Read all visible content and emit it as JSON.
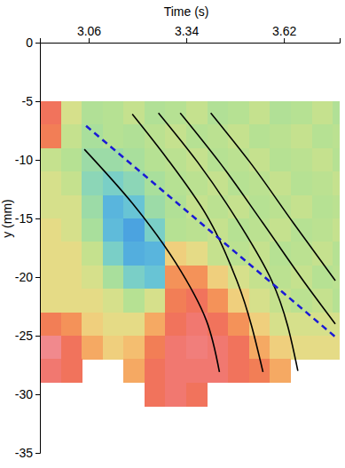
{
  "chart_data": {
    "type": "heatmap",
    "x_label": "Time (s)",
    "y_label": "y (mm)",
    "xlim": [
      2.92,
      3.78
    ],
    "xticks": [
      3.06,
      3.34,
      3.62
    ],
    "ylim": [
      -35,
      0
    ],
    "yticks": [
      0,
      -5,
      -10,
      -15,
      -20,
      -25,
      -30,
      -35
    ],
    "zlim": [
      0,
      1
    ],
    "cell_x": [
      2.92,
      2.98,
      3.04,
      3.1,
      3.16,
      3.22,
      3.28,
      3.34,
      3.4,
      3.46,
      3.52,
      3.58,
      3.64,
      3.7,
      3.76,
      3.78
    ],
    "cell_y": [
      -5,
      -7,
      -9,
      -11,
      -13,
      -15,
      -17,
      -19,
      -21,
      -23,
      -25,
      -27,
      -29,
      -31
    ],
    "cells": [
      [
        0.85,
        0.5,
        0.38,
        0.4,
        0.45,
        0.38,
        0.4,
        0.45,
        0.38,
        0.4,
        0.45,
        0.38,
        0.4,
        0.45,
        0.38
      ],
      [
        0.8,
        0.45,
        0.35,
        0.4,
        0.38,
        0.42,
        0.45,
        0.4,
        0.42,
        0.45,
        0.4,
        0.42,
        0.45,
        0.4,
        0.42
      ],
      [
        0.45,
        0.4,
        0.3,
        0.3,
        0.35,
        0.4,
        0.42,
        0.45,
        0.4,
        0.42,
        0.45,
        0.4,
        0.42,
        0.45,
        0.4
      ],
      [
        0.5,
        0.45,
        0.25,
        0.2,
        0.25,
        0.35,
        0.4,
        0.42,
        0.45,
        0.4,
        0.42,
        0.45,
        0.4,
        0.42,
        0.45
      ],
      [
        0.5,
        0.5,
        0.3,
        0.1,
        0.15,
        0.3,
        0.38,
        0.45,
        0.42,
        0.45,
        0.4,
        0.42,
        0.45,
        0.4,
        0.42
      ],
      [
        0.55,
        0.5,
        0.35,
        0.12,
        0.05,
        0.2,
        0.4,
        0.42,
        0.45,
        0.4,
        0.42,
        0.45,
        0.4,
        0.42,
        0.45
      ],
      [
        0.55,
        0.55,
        0.45,
        0.2,
        0.08,
        0.1,
        0.6,
        0.55,
        0.45,
        0.42,
        0.45,
        0.4,
        0.42,
        0.45,
        0.4
      ],
      [
        0.55,
        0.55,
        0.5,
        0.35,
        0.2,
        0.15,
        0.75,
        0.75,
        0.6,
        0.5,
        0.45,
        0.42,
        0.45,
        0.4,
        0.42
      ],
      [
        0.55,
        0.55,
        0.55,
        0.5,
        0.4,
        0.5,
        0.8,
        0.85,
        0.75,
        0.6,
        0.5,
        0.45,
        0.42,
        0.45,
        0.4
      ],
      [
        0.8,
        0.75,
        0.6,
        0.55,
        0.55,
        0.7,
        0.85,
        0.9,
        0.85,
        0.75,
        0.6,
        0.5,
        0.5,
        0.5,
        0.5
      ],
      [
        0.95,
        0.85,
        0.7,
        0.6,
        0.65,
        0.8,
        0.9,
        0.92,
        0.9,
        0.85,
        0.7,
        0.6,
        0.55,
        0.55,
        0.55
      ],
      [
        0.9,
        0.85,
        null,
        null,
        0.7,
        0.85,
        0.9,
        0.9,
        0.9,
        0.85,
        0.8,
        0.7,
        null,
        null,
        null
      ],
      [
        null,
        null,
        null,
        null,
        null,
        0.85,
        0.9,
        0.85,
        null,
        null,
        null,
        null,
        null,
        null,
        null
      ]
    ],
    "series": [
      {
        "type": "line",
        "color": "#000000",
        "line_style": "solid",
        "x": [
          3.0475,
          3.185,
          3.31,
          3.3975,
          3.435
        ],
        "values": [
          -9.1,
          -13.7,
          -18.8,
          -23.7,
          -28.1
        ]
      },
      {
        "type": "line",
        "color": "#000000",
        "line_style": "solid",
        "x": [
          3.185,
          3.285,
          3.3975,
          3.485,
          3.56
        ],
        "values": [
          -6.1,
          -9.9,
          -14.7,
          -20.3,
          -28.1
        ]
      },
      {
        "type": "line",
        "color": "#000000",
        "line_style": "solid",
        "x": [
          3.26,
          3.3725,
          3.485,
          3.585,
          3.66
        ],
        "values": [
          -6.0,
          -10.2,
          -15.1,
          -20.3,
          -28.0
        ]
      },
      {
        "type": "line",
        "color": "#000000",
        "line_style": "solid",
        "x": [
          3.3225,
          3.435,
          3.56,
          3.685,
          3.7675
        ],
        "values": [
          -6.0,
          -10.2,
          -15.4,
          -20.7,
          -24.0
        ]
      },
      {
        "type": "line",
        "color": "#000000",
        "line_style": "solid",
        "x": [
          3.41,
          3.5225,
          3.6475,
          3.7675
        ],
        "values": [
          -6.0,
          -10.2,
          -15.4,
          -20.3
        ]
      },
      {
        "type": "line",
        "color": "#1a1ad6",
        "line_style": "dashed",
        "x": [
          3.0525,
          3.41,
          3.7675
        ],
        "values": [
          -7.1,
          -16.1,
          -25.1
        ]
      }
    ]
  }
}
